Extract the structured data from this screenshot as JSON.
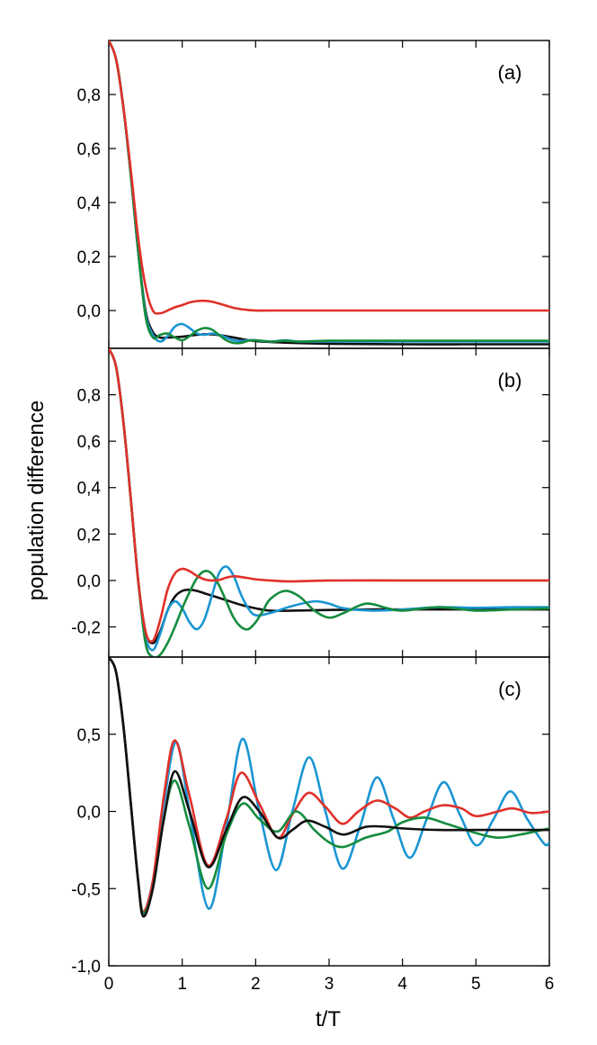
{
  "figure": {
    "ylabel": "population difference",
    "xlabel": "t/T"
  },
  "colors": {
    "red": "#e0302a",
    "blue": "#1a95d2",
    "green": "#158c3e",
    "black": "#111111"
  },
  "chart_data": [
    {
      "type": "line",
      "panel_label": "(a)",
      "xlim": [
        0,
        6
      ],
      "ylim": [
        -0.14,
        1.0
      ],
      "xticks": [
        0,
        1,
        2,
        3,
        4,
        5,
        6
      ],
      "yticks": [
        0.0,
        0.2,
        0.4,
        0.6,
        0.8
      ],
      "ytick_labels": [
        "0,0",
        "0,2",
        "0,4",
        "0,6",
        "0,8"
      ],
      "series": [
        {
          "color": "black",
          "x": [
            0,
            0.1,
            0.2,
            0.3,
            0.4,
            0.5,
            0.6,
            0.7,
            0.8,
            1.0,
            1.2,
            1.4,
            1.6,
            1.8,
            2.0,
            2.5,
            3.0,
            4.0,
            5.0,
            6.0
          ],
          "y": [
            1.0,
            0.93,
            0.75,
            0.5,
            0.22,
            0.0,
            -0.08,
            -0.1,
            -0.1,
            -0.097,
            -0.09,
            -0.088,
            -0.095,
            -0.105,
            -0.113,
            -0.12,
            -0.123,
            -0.125,
            -0.125,
            -0.125
          ]
        },
        {
          "color": "blue",
          "x": [
            0,
            0.1,
            0.2,
            0.3,
            0.4,
            0.5,
            0.6,
            0.7,
            0.8,
            0.9,
            1.0,
            1.1,
            1.2,
            1.3,
            1.4,
            1.5,
            1.6,
            1.7,
            1.8,
            1.9,
            2.0,
            2.2,
            2.4,
            2.6,
            3.0,
            4.0,
            5.0,
            6.0
          ],
          "y": [
            1.0,
            0.93,
            0.75,
            0.5,
            0.22,
            -0.01,
            -0.09,
            -0.115,
            -0.095,
            -0.06,
            -0.05,
            -0.065,
            -0.085,
            -0.09,
            -0.085,
            -0.09,
            -0.1,
            -0.11,
            -0.113,
            -0.11,
            -0.11,
            -0.115,
            -0.11,
            -0.115,
            -0.115,
            -0.115,
            -0.115,
            -0.115
          ]
        },
        {
          "color": "green",
          "x": [
            0,
            0.1,
            0.2,
            0.3,
            0.4,
            0.5,
            0.6,
            0.7,
            0.8,
            0.9,
            1.0,
            1.1,
            1.2,
            1.3,
            1.4,
            1.5,
            1.6,
            1.7,
            1.8,
            1.9,
            2.0,
            2.2,
            2.4,
            2.6,
            3.0,
            4.0,
            5.0,
            6.0
          ],
          "y": [
            1.0,
            0.93,
            0.75,
            0.5,
            0.22,
            -0.02,
            -0.1,
            -0.09,
            -0.085,
            -0.1,
            -0.11,
            -0.095,
            -0.075,
            -0.065,
            -0.07,
            -0.09,
            -0.11,
            -0.12,
            -0.12,
            -0.112,
            -0.11,
            -0.115,
            -0.112,
            -0.115,
            -0.112,
            -0.112,
            -0.112,
            -0.112
          ]
        },
        {
          "color": "red",
          "x": [
            0,
            0.1,
            0.2,
            0.3,
            0.4,
            0.5,
            0.6,
            0.7,
            0.8,
            0.9,
            1.0,
            1.1,
            1.2,
            1.3,
            1.4,
            1.5,
            1.6,
            1.7,
            1.8,
            1.9,
            2.0,
            2.2,
            2.5,
            3.0,
            4.0,
            5.0,
            6.0
          ],
          "y": [
            1.0,
            0.93,
            0.75,
            0.52,
            0.27,
            0.09,
            0.0,
            -0.01,
            0.0,
            0.012,
            0.02,
            0.03,
            0.035,
            0.036,
            0.033,
            0.026,
            0.018,
            0.01,
            0.005,
            0.002,
            0.0,
            0.0,
            0.0,
            0.0,
            0.0,
            0.0,
            0.0
          ]
        }
      ]
    },
    {
      "type": "line",
      "panel_label": "(b)",
      "xlim": [
        0,
        6
      ],
      "ylim": [
        -0.33,
        1.0
      ],
      "xticks": [
        0,
        1,
        2,
        3,
        4,
        5,
        6
      ],
      "yticks": [
        -0.2,
        0.0,
        0.2,
        0.4,
        0.6,
        0.8
      ],
      "ytick_labels": [
        "-0,2",
        "0,0",
        "0,2",
        "0,4",
        "0,6",
        "0,8"
      ],
      "series": [
        {
          "color": "black",
          "x": [
            0,
            0.1,
            0.2,
            0.3,
            0.4,
            0.5,
            0.6,
            0.7,
            0.8,
            0.9,
            1.0,
            1.1,
            1.2,
            1.3,
            1.4,
            1.6,
            1.8,
            2.0,
            2.2,
            2.5,
            3.0,
            3.5,
            4.0,
            5.0,
            6.0
          ],
          "y": [
            1.0,
            0.92,
            0.68,
            0.35,
            0.0,
            -0.22,
            -0.27,
            -0.22,
            -0.13,
            -0.07,
            -0.045,
            -0.04,
            -0.045,
            -0.055,
            -0.065,
            -0.085,
            -0.105,
            -0.12,
            -0.13,
            -0.13,
            -0.127,
            -0.125,
            -0.125,
            -0.125,
            -0.125
          ]
        },
        {
          "color": "blue",
          "x": [
            0,
            0.1,
            0.2,
            0.3,
            0.4,
            0.5,
            0.6,
            0.7,
            0.8,
            0.9,
            1.0,
            1.1,
            1.2,
            1.3,
            1.4,
            1.5,
            1.6,
            1.7,
            1.8,
            1.9,
            2.0,
            2.2,
            2.5,
            2.8,
            3.0,
            3.2,
            3.6,
            4.0,
            4.5,
            5.0,
            5.5,
            6.0
          ],
          "y": [
            1.0,
            0.92,
            0.68,
            0.35,
            0.0,
            -0.24,
            -0.3,
            -0.23,
            -0.13,
            -0.09,
            -0.12,
            -0.18,
            -0.21,
            -0.17,
            -0.07,
            0.03,
            0.06,
            0.02,
            -0.06,
            -0.12,
            -0.15,
            -0.14,
            -0.11,
            -0.09,
            -0.1,
            -0.12,
            -0.13,
            -0.125,
            -0.115,
            -0.118,
            -0.115,
            -0.115
          ]
        },
        {
          "color": "green",
          "x": [
            0,
            0.1,
            0.2,
            0.3,
            0.4,
            0.5,
            0.6,
            0.7,
            0.8,
            0.9,
            1.0,
            1.1,
            1.2,
            1.3,
            1.4,
            1.5,
            1.6,
            1.7,
            1.8,
            1.9,
            2.0,
            2.1,
            2.2,
            2.4,
            2.6,
            2.8,
            3.0,
            3.2,
            3.5,
            3.8,
            4.0,
            4.5,
            5.0,
            5.5,
            6.0
          ],
          "y": [
            1.0,
            0.92,
            0.68,
            0.35,
            0.0,
            -0.27,
            -0.33,
            -0.32,
            -0.27,
            -0.2,
            -0.12,
            -0.05,
            0.01,
            0.04,
            0.03,
            -0.02,
            -0.09,
            -0.16,
            -0.2,
            -0.21,
            -0.18,
            -0.13,
            -0.08,
            -0.045,
            -0.07,
            -0.13,
            -0.16,
            -0.14,
            -0.1,
            -0.12,
            -0.13,
            -0.115,
            -0.13,
            -0.125,
            -0.12
          ]
        },
        {
          "color": "red",
          "x": [
            0,
            0.1,
            0.2,
            0.3,
            0.4,
            0.5,
            0.6,
            0.7,
            0.8,
            0.9,
            1.0,
            1.1,
            1.2,
            1.3,
            1.4,
            1.5,
            1.6,
            1.7,
            1.8,
            2.0,
            2.2,
            2.5,
            3.0,
            4.0,
            5.0,
            6.0
          ],
          "y": [
            1.0,
            0.92,
            0.68,
            0.35,
            0.0,
            -0.22,
            -0.26,
            -0.17,
            -0.04,
            0.03,
            0.05,
            0.04,
            0.02,
            0.005,
            0.0,
            0.002,
            0.012,
            0.018,
            0.015,
            0.005,
            0.0,
            -0.004,
            0.0,
            0.0,
            0.0,
            0.0
          ]
        }
      ]
    },
    {
      "type": "line",
      "panel_label": "(c)",
      "xlim": [
        0,
        6
      ],
      "ylim": [
        -1.0,
        1.0
      ],
      "xticks": [
        0,
        1,
        2,
        3,
        4,
        5,
        6
      ],
      "xtick_labels": [
        "0",
        "1",
        "2",
        "3",
        "4",
        "5",
        "6"
      ],
      "yticks": [
        -1.0,
        -0.5,
        0.0,
        0.5
      ],
      "ytick_labels": [
        "-1,0",
        "-0,5",
        "0,0",
        "0,5"
      ],
      "series": [
        {
          "color": "blue",
          "x": [
            0,
            0.1,
            0.2,
            0.3,
            0.4,
            0.47,
            0.6,
            0.75,
            0.92,
            1.1,
            1.36,
            1.6,
            1.82,
            2.05,
            2.28,
            2.5,
            2.73,
            2.95,
            3.18,
            3.42,
            3.65,
            3.88,
            4.1,
            4.33,
            4.56,
            4.78,
            5.01,
            5.24,
            5.47,
            5.7,
            5.93,
            6.0
          ],
          "y": [
            1.0,
            0.9,
            0.55,
            0.05,
            -0.45,
            -0.65,
            -0.45,
            0.05,
            0.45,
            0.0,
            -0.63,
            -0.1,
            0.47,
            0.0,
            -0.38,
            0.0,
            0.35,
            0.0,
            -0.37,
            -0.1,
            0.22,
            -0.05,
            -0.3,
            -0.05,
            0.19,
            -0.02,
            -0.22,
            -0.05,
            0.13,
            -0.05,
            -0.21,
            -0.2
          ]
        },
        {
          "color": "red",
          "x": [
            0,
            0.1,
            0.2,
            0.3,
            0.4,
            0.47,
            0.6,
            0.75,
            0.9,
            1.1,
            1.35,
            1.6,
            1.8,
            2.05,
            2.3,
            2.5,
            2.72,
            2.95,
            3.18,
            3.4,
            3.65,
            3.9,
            4.1,
            4.3,
            4.55,
            4.8,
            5.0,
            5.3,
            5.5,
            5.75,
            6.0
          ],
          "y": [
            1.0,
            0.9,
            0.55,
            0.05,
            -0.45,
            -0.65,
            -0.45,
            0.1,
            0.46,
            0.1,
            -0.35,
            -0.05,
            0.25,
            0.05,
            -0.17,
            -0.02,
            0.12,
            0.03,
            -0.08,
            0.0,
            0.07,
            0.02,
            -0.04,
            0.0,
            0.04,
            0.02,
            -0.03,
            0.0,
            0.02,
            -0.01,
            0.0
          ]
        },
        {
          "color": "green",
          "x": [
            0,
            0.1,
            0.2,
            0.3,
            0.4,
            0.47,
            0.6,
            0.75,
            0.9,
            1.1,
            1.35,
            1.6,
            1.82,
            2.05,
            2.3,
            2.55,
            2.8,
            3.0,
            3.2,
            3.5,
            3.8,
            4.0,
            4.3,
            4.6,
            5.0,
            5.3,
            5.6,
            6.0
          ],
          "y": [
            1.0,
            0.9,
            0.55,
            0.05,
            -0.45,
            -0.66,
            -0.5,
            -0.05,
            0.2,
            -0.1,
            -0.5,
            -0.15,
            0.05,
            -0.05,
            -0.13,
            0.0,
            -0.12,
            -0.2,
            -0.23,
            -0.17,
            -0.13,
            -0.07,
            -0.04,
            -0.08,
            -0.14,
            -0.17,
            -0.15,
            -0.11
          ]
        },
        {
          "color": "black",
          "x": [
            0,
            0.1,
            0.2,
            0.3,
            0.4,
            0.47,
            0.6,
            0.75,
            0.9,
            1.1,
            1.35,
            1.6,
            1.82,
            2.05,
            2.3,
            2.5,
            2.7,
            2.95,
            3.2,
            3.5,
            3.8,
            4.0,
            4.5,
            5.0,
            5.5,
            6.0
          ],
          "y": [
            1.0,
            0.9,
            0.55,
            0.05,
            -0.45,
            -0.68,
            -0.5,
            -0.05,
            0.26,
            0.0,
            -0.36,
            -0.12,
            0.09,
            0.0,
            -0.17,
            -0.12,
            -0.06,
            -0.1,
            -0.15,
            -0.1,
            -0.1,
            -0.11,
            -0.12,
            -0.12,
            -0.12,
            -0.12
          ]
        }
      ]
    }
  ]
}
